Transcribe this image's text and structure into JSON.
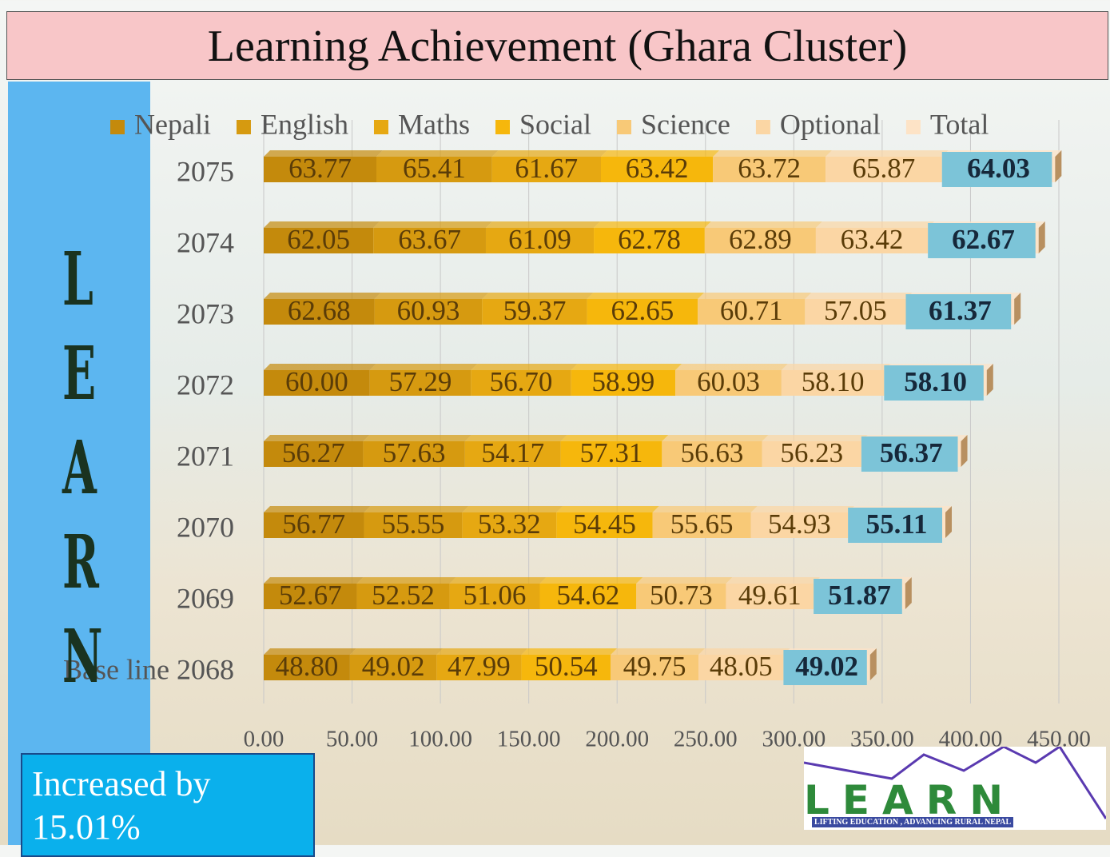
{
  "slide": {
    "side_text": "LEARN",
    "callout": "Increased by 15.01%",
    "logo": {
      "name": "LEARN",
      "tagline": "LIFTING EDUCATION , ADVANCING RURAL NEPAL"
    }
  },
  "chart_data": {
    "type": "stacked-bar-horizontal",
    "title": "Learning Achievement  (Ghara Cluster)",
    "categories": [
      "2075",
      "2074",
      "2073",
      "2072",
      "2071",
      "2070",
      "2069",
      "Base line 2068"
    ],
    "series": [
      {
        "name": "Nepali",
        "color": "#c48a0c",
        "values": [
          63.77,
          62.05,
          62.68,
          60.0,
          56.27,
          56.77,
          52.67,
          48.8
        ],
        "value_labels": [
          "63.77",
          "62.05",
          "62.68",
          "60.00",
          "56.27",
          "56.77",
          "52.67",
          "48.80"
        ]
      },
      {
        "name": "English",
        "color": "#d69a10",
        "values": [
          65.41,
          63.67,
          60.93,
          57.29,
          57.63,
          55.55,
          52.52,
          49.02
        ],
        "value_labels": [
          "65.41",
          "63.67",
          "60.93",
          "57.29",
          "57.63",
          "55.55",
          "52.52",
          "49.02"
        ]
      },
      {
        "name": "Maths",
        "color": "#e6a812",
        "values": [
          61.67,
          61.09,
          59.37,
          56.7,
          54.17,
          53.32,
          51.06,
          47.99
        ],
        "value_labels": [
          "61.67",
          "61.09",
          "59.37",
          "56.70",
          "54.17",
          "53.32",
          "51.06",
          "47.99"
        ]
      },
      {
        "name": "Social",
        "color": "#f6b70c",
        "values": [
          63.42,
          62.78,
          62.65,
          58.99,
          57.31,
          54.45,
          54.62,
          50.54
        ],
        "value_labels": [
          "63.42",
          "62.78",
          "62.65",
          "58.99",
          "57.31",
          "54.45",
          "54.62",
          "50.54"
        ]
      },
      {
        "name": "Science",
        "color": "#f8c977",
        "values": [
          63.72,
          62.89,
          60.71,
          60.03,
          56.63,
          55.65,
          50.73,
          49.75
        ],
        "value_labels": [
          "63.72",
          "62.89",
          "60.71",
          "60.03",
          "56.63",
          "55.65",
          "50.73",
          "49.75"
        ]
      },
      {
        "name": "Optional",
        "color": "#fbd6a4",
        "values": [
          65.87,
          63.42,
          57.05,
          58.1,
          56.23,
          54.93,
          49.61,
          48.05
        ],
        "value_labels": [
          "65.87",
          "63.42",
          "57.05",
          "58.10",
          "56.23",
          "54.93",
          "49.61",
          "48.05"
        ]
      },
      {
        "name": "Total",
        "color": "#fde3c6",
        "values": [
          64.03,
          62.67,
          61.37,
          58.1,
          56.37,
          55.11,
          51.87,
          49.02
        ],
        "value_labels": [
          "64.03",
          "62.67",
          "61.37",
          "58.10",
          "56.37",
          "55.11",
          "51.87",
          "49.02"
        ]
      }
    ],
    "xlim": [
      0,
      450
    ],
    "xticks": [
      {
        "value": 0,
        "label": "0.00"
      },
      {
        "value": 50,
        "label": "50.00"
      },
      {
        "value": 100,
        "label": "100.00"
      },
      {
        "value": 150,
        "label": "150.00"
      },
      {
        "value": 200,
        "label": "200.00"
      },
      {
        "value": 250,
        "label": "250.00"
      },
      {
        "value": 300,
        "label": "300.00"
      },
      {
        "value": 350,
        "label": "350.00"
      },
      {
        "value": 400,
        "label": "400.00"
      },
      {
        "value": 450,
        "label": "450.00"
      }
    ],
    "grid": true,
    "legend": "top"
  }
}
